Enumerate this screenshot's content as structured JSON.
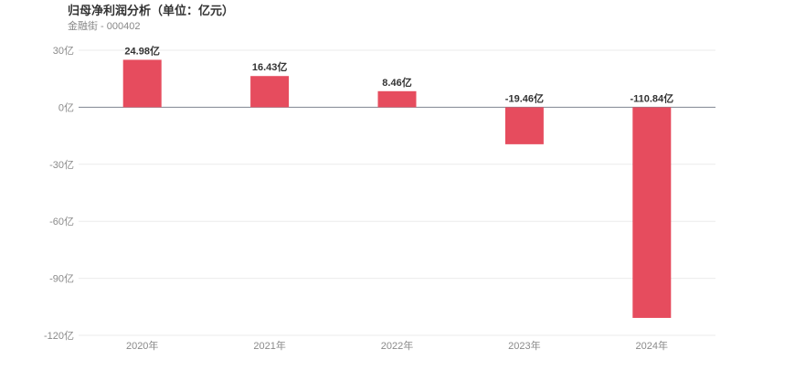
{
  "header": {
    "title": "归母净利润分析（单位：亿元）",
    "subtitle": "金融街 - 000402"
  },
  "chart_data": {
    "type": "bar",
    "categories": [
      "2020年",
      "2021年",
      "2022年",
      "2023年",
      "2024年"
    ],
    "values": [
      24.98,
      16.43,
      8.46,
      -19.46,
      -110.84
    ],
    "data_labels": [
      "24.98亿",
      "16.43亿",
      "8.46亿",
      "-19.46亿",
      "-110.84亿"
    ],
    "y_ticks": [
      30,
      0,
      -30,
      -60,
      -90,
      -120
    ],
    "y_tick_labels": [
      "30亿",
      "0亿",
      "-30亿",
      "-60亿",
      "-90亿",
      "-120亿"
    ],
    "ylim": [
      -120,
      30
    ],
    "bar_color": "#e64c5e",
    "grid": true,
    "legend": "none"
  }
}
